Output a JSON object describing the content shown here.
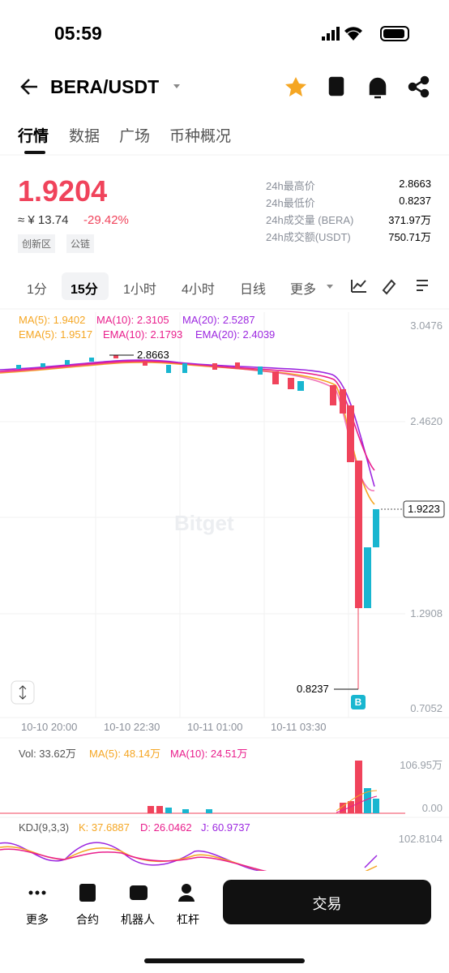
{
  "status": {
    "time": "05:59"
  },
  "header": {
    "pair": "BERA/USDT"
  },
  "tabs": [
    "行情",
    "数据",
    "广场",
    "币种概况"
  ],
  "price": {
    "last": "1.9204",
    "cny": "≈ ¥ 13.74",
    "change": "-29.42%"
  },
  "tags": [
    "创新区",
    "公链"
  ],
  "stats": [
    {
      "label": "24h最高价",
      "value": "2.8663"
    },
    {
      "label": "24h最低价",
      "value": "0.8237"
    },
    {
      "label": "24h成交量 (BERA)",
      "value": "371.97万"
    },
    {
      "label": "24h成交额(USDT)",
      "value": "750.71万"
    }
  ],
  "intervals": [
    "1分",
    "15分",
    "1小时",
    "4小时",
    "日线",
    "更多"
  ],
  "chart": {
    "ma": [
      "MA(5): 1.9402",
      "MA(10): 2.3105",
      "MA(20): 2.5287"
    ],
    "ema": [
      "EMA(5): 1.9517",
      "EMA(10): 2.1793",
      "EMA(20): 2.4039"
    ],
    "yaxis": [
      "3.0476",
      "2.4620",
      "1.2908",
      "0.7052"
    ],
    "last_price": "1.9223",
    "high_label": "2.8663",
    "low_label": "0.8237",
    "marker": "B",
    "watermark": "Bitget",
    "times": [
      "10-10 20:00",
      "10-10 22:30",
      "10-11 01:00",
      "10-11 03:30"
    ]
  },
  "volume": {
    "vol": "Vol: 33.62万",
    "ma5": "MA(5): 48.14万",
    "ma10": "MA(10): 24.51万",
    "ymax": "106.95万",
    "ymin": "0.00"
  },
  "kdj": {
    "name": "KDJ(9,3,3)",
    "k": "K: 37.6887",
    "d": "D: 26.0462",
    "j": "J: 60.9737",
    "ymax": "102.8104"
  },
  "bottom": {
    "nav": [
      "更多",
      "合约",
      "机器人",
      "杠杆"
    ],
    "trade": "交易"
  }
}
